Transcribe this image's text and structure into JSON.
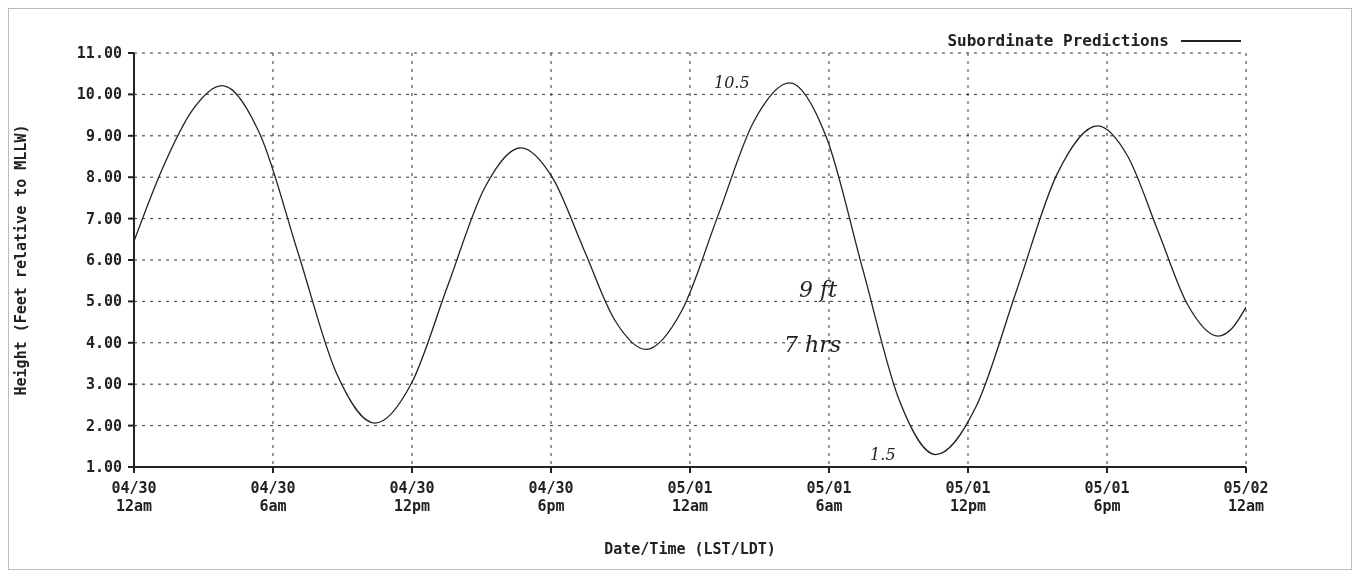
{
  "chart_data": {
    "type": "line",
    "xlabel": "Date/Time (LST/LDT)",
    "ylabel": "Height (Feet relative to MLLW)",
    "x": [
      "--04-30T00:00",
      "--04-30T01:18",
      "--04-30T02:30",
      "--04-30T03:48",
      "--04-30T05:27",
      "--04-30T07:06",
      "--04-30T08:45",
      "--04-30T10:24",
      "--04-30T11:59",
      "--04-30T13:33",
      "--04-30T15:08",
      "--04-30T16:42",
      "--04-30T18:03",
      "--04-30T19:24",
      "--04-30T20:45",
      "--04-30T22:06",
      "--04-30T23:39",
      "--05-01T01:12",
      "--05-01T02:45",
      "--05-01T04:18",
      "--05-01T05:53",
      "--05-01T07:27",
      "--05-01T09:02",
      "--05-01T10:36",
      "--05-01T12:21",
      "--05-01T14:06",
      "--05-01T15:51",
      "--05-01T17:36",
      "--05-01T18:54",
      "--05-01T20:12",
      "--05-01T21:30",
      "--05-01T22:48",
      "--05-01T23:24",
      "--05-02T00:00"
    ],
    "series": [
      {
        "name": "Subordinate Predictions",
        "color": "#222222",
        "values": [
          6.45,
          8.3,
          9.6,
          10.21,
          9.02,
          6.14,
          3.25,
          2.06,
          3.03,
          5.39,
          7.74,
          8.71,
          8.0,
          6.28,
          4.55,
          3.84,
          4.78,
          7.06,
          9.34,
          10.28,
          8.97,
          5.79,
          2.61,
          1.3,
          2.46,
          5.27,
          8.08,
          9.24,
          8.5,
          6.7,
          4.9,
          4.16,
          4.35,
          4.86
        ]
      }
    ],
    "xlim": [
      "--04-30T00:00",
      "--05-02T00:00"
    ],
    "xticks": [
      {
        "value": "--04-30T00:00",
        "label": "04/30\n12am"
      },
      {
        "value": "--04-30T06:00",
        "label": "04/30\n6am"
      },
      {
        "value": "--04-30T12:00",
        "label": "04/30\n12pm"
      },
      {
        "value": "--04-30T18:00",
        "label": "04/30\n6pm"
      },
      {
        "value": "--05-01T00:00",
        "label": "05/01\n12am"
      },
      {
        "value": "--05-01T06:00",
        "label": "05/01\n6am"
      },
      {
        "value": "--05-01T12:00",
        "label": "05/01\n12pm"
      },
      {
        "value": "--05-01T18:00",
        "label": "05/01\n6pm"
      },
      {
        "value": "--05-02T00:00",
        "label": "05/02\n12am"
      }
    ],
    "ylim": [
      1,
      11
    ],
    "yticks": [
      {
        "value": 1,
        "label": "1.00"
      },
      {
        "value": 2,
        "label": "2.00"
      },
      {
        "value": 3,
        "label": "3.00"
      },
      {
        "value": 4,
        "label": "4.00"
      },
      {
        "value": 5,
        "label": "5.00"
      },
      {
        "value": 6,
        "label": "6.00"
      },
      {
        "value": 7,
        "label": "7.00"
      },
      {
        "value": 8,
        "label": "8.00"
      },
      {
        "value": 9,
        "label": "9.00"
      },
      {
        "value": 10,
        "label": "10.00"
      },
      {
        "value": 11,
        "label": "11.00"
      }
    ],
    "grid": true,
    "legend": "top right",
    "marker": "none",
    "line_style": "solid",
    "annotations": [
      {
        "text": "10.5",
        "x": "--05-01T04:18",
        "y": 10.28
      },
      {
        "text": "1.5",
        "x": "--05-01T10:36",
        "y": 1.3
      },
      "9 ft",
      "7 hrs"
    ]
  }
}
